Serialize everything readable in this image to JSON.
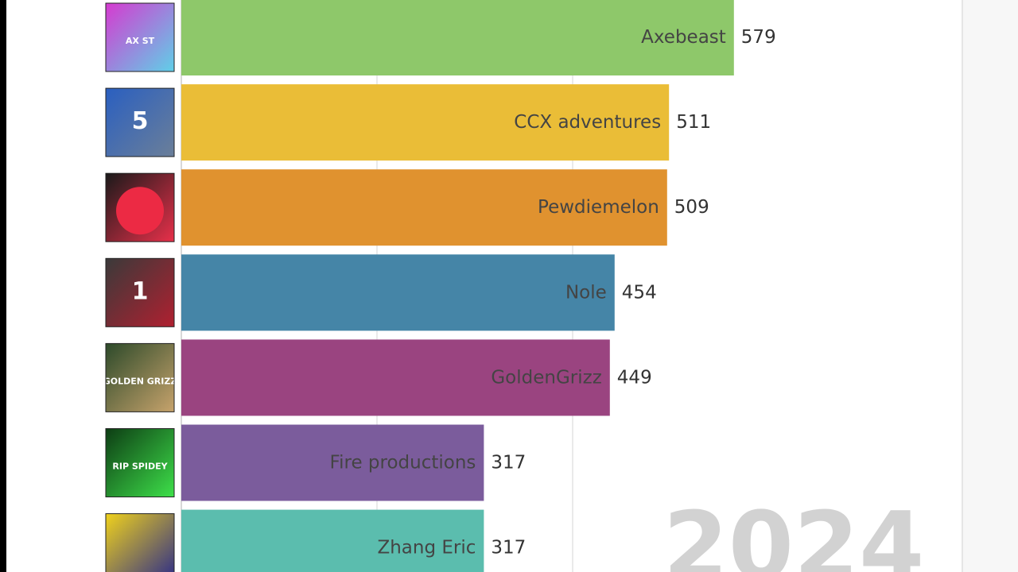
{
  "chart_data": {
    "type": "bar",
    "orientation": "horizontal",
    "categories": [
      "Axebeast",
      "CCX adventures",
      "Pewdiemelon",
      "Nole",
      "GoldenGrizz",
      "Fire productions",
      "Zhang Eric"
    ],
    "values": [
      579,
      511,
      509,
      454,
      449,
      317,
      317
    ],
    "colors": [
      "#8ec86a",
      "#eabd37",
      "#e0922f",
      "#4585a7",
      "#9a4480",
      "#7b5c9c",
      "#5bbdae"
    ],
    "avatars": [
      {
        "icon": "player-avatar-icon",
        "text": "AX  ST",
        "colors": [
          "#d63ad0",
          "#5fd0e8"
        ]
      },
      {
        "icon": "football-player-avatar-icon",
        "text": "5",
        "colors": [
          "#2a5fc0",
          "#6b7f99"
        ]
      },
      {
        "icon": "red-melon-avatar-icon",
        "text": "",
        "colors": [
          "#1a1a1a",
          "#e8304a"
        ]
      },
      {
        "icon": "basketball-player-avatar-icon",
        "text": "1",
        "colors": [
          "#3a3a3a",
          "#b02030"
        ]
      },
      {
        "icon": "golden-grizz-avatar-icon",
        "text": "GOLDEN GRIZZ",
        "colors": [
          "#2d4a2a",
          "#c7a36c"
        ]
      },
      {
        "icon": "rip-spidey-avatar-icon",
        "text": "RIP SPIDEY",
        "colors": [
          "#0d3d14",
          "#3ee04a"
        ]
      },
      {
        "icon": "dragon-flag-avatar-icon",
        "text": "",
        "colors": [
          "#f0d21c",
          "#2a2a8a"
        ]
      }
    ],
    "year": "2024",
    "x_range": [
      0,
      600
    ],
    "grid": true,
    "title": "",
    "xlabel": "",
    "ylabel": ""
  }
}
